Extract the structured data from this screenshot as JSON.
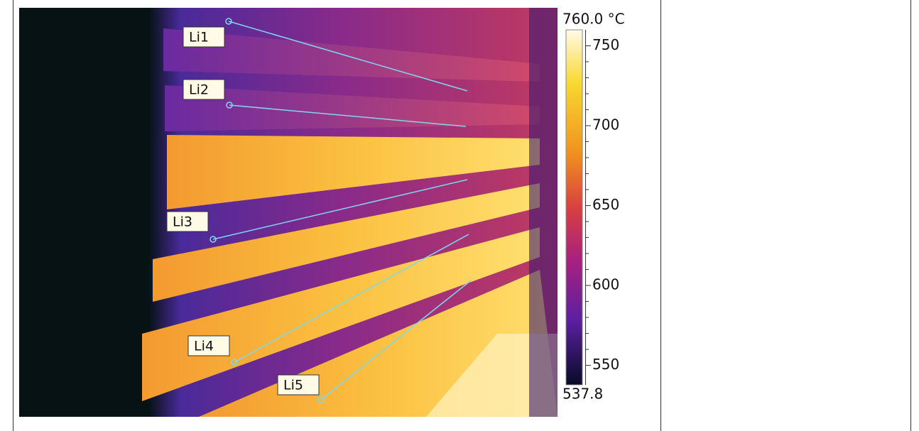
{
  "image": {
    "line_labels": [
      "Li1",
      "Li2",
      "Li3",
      "Li4",
      "Li5"
    ]
  },
  "scale": {
    "max": {
      "value": 760,
      "label": "760.0 °C"
    },
    "min": 537.8,
    "ticks": [
      550,
      600,
      650,
      700,
      750
    ]
  }
}
